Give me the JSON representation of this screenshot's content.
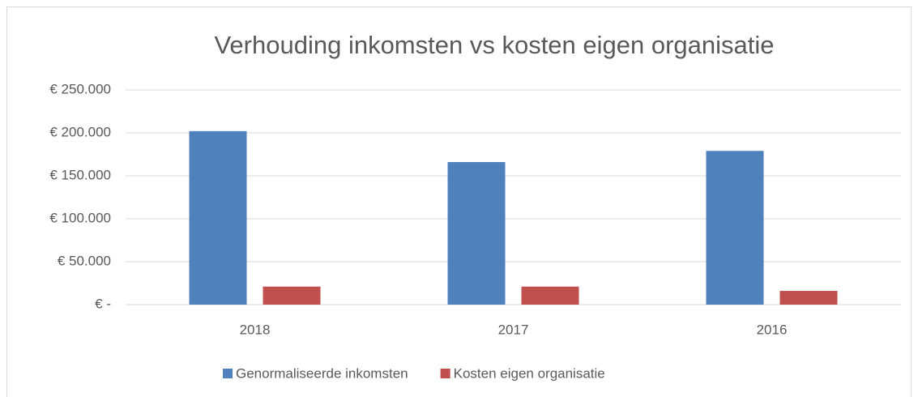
{
  "chart_data": {
    "type": "bar",
    "title": "Verhouding inkomsten vs kosten eigen organisatie",
    "categories": [
      "2018",
      "2017",
      "2016"
    ],
    "series": [
      {
        "name": "Genormaliseerde inkomsten",
        "color": "#4f81bd",
        "values": [
          202000,
          166000,
          179000
        ]
      },
      {
        "name": "Kosten eigen organisatie",
        "color": "#c0504d",
        "values": [
          21000,
          21000,
          16000
        ]
      }
    ],
    "ylim": [
      0,
      250000
    ],
    "yticks": [
      {
        "value": 0,
        "label": "€ -"
      },
      {
        "value": 50000,
        "label": "€ 50.000"
      },
      {
        "value": 100000,
        "label": "€ 100.000"
      },
      {
        "value": 150000,
        "label": "€ 150.000"
      },
      {
        "value": 200000,
        "label": "€ 200.000"
      },
      {
        "value": 250000,
        "label": "€ 250.000"
      }
    ],
    "grid": true,
    "legend": "bottom"
  }
}
